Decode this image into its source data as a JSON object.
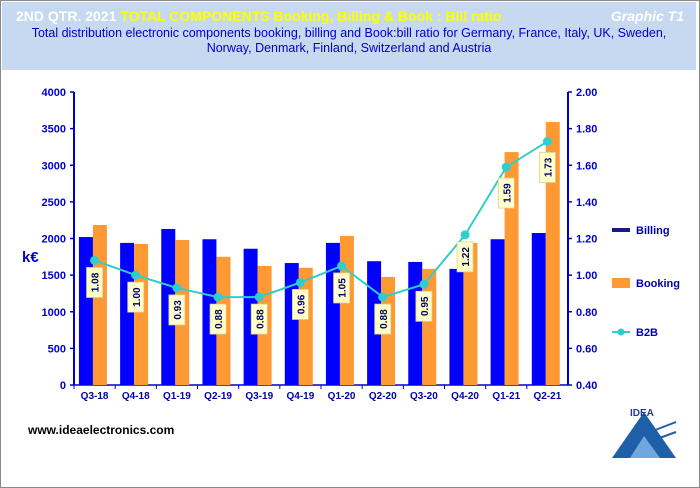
{
  "header": {
    "title_prefix": "2ND QTR. 2021",
    "title_main": "TOTAL COMPONENTS  Booking, Billing  & Book : Bill ratio",
    "graphic_label": "Graphic T1",
    "subtitle_line1": "Total distribution electronic components booking, billing and Book:bill ratio for Germany,  France, Italy,  UK, Sweden,",
    "subtitle_line2": "Norway,  Denmark,  Finland,  Switzerland  and  Austria"
  },
  "footer": {
    "url": "www.ideaelectronics.com",
    "logo_text": "IDEA"
  },
  "colors": {
    "billing": "#0000ff",
    "booking": "#ff9933",
    "b2b": "#33cccc",
    "axis": "#0000cc",
    "header_bg": "#c6d9f1"
  },
  "chart_data": {
    "type": "bar",
    "categories": [
      "Q3-18",
      "Q4-18",
      "Q1-19",
      "Q2-19",
      "Q3-19",
      "Q4-19",
      "Q1-20",
      "Q2-20",
      "Q3-20",
      "Q4-20",
      "Q1-21",
      "Q2-21"
    ],
    "series": [
      {
        "name": "Billing",
        "values": [
          2020,
          1940,
          2130,
          1990,
          1860,
          1665,
          1940,
          1690,
          1680,
          1585,
          1990,
          2075
        ]
      },
      {
        "name": "Booking",
        "values": [
          2185,
          1925,
          1980,
          1750,
          1625,
          1600,
          2035,
          1475,
          1585,
          1940,
          3180,
          3590
        ]
      },
      {
        "name": "B2B",
        "type": "line",
        "axis": "right",
        "values": [
          1.08,
          1.0,
          0.93,
          0.88,
          0.88,
          0.96,
          1.05,
          0.88,
          0.95,
          1.22,
          1.59,
          1.73
        ],
        "labels": [
          "1.08",
          "1.00",
          "0.93",
          "0.88",
          "0.88",
          "0.96",
          "1.05",
          "0.88",
          "0.95",
          "1.22",
          "1.59",
          "1.73"
        ]
      }
    ],
    "ylabel": "k€",
    "ylim": [
      0,
      4000
    ],
    "yticks": [
      "0",
      "500",
      "1000",
      "1500",
      "2000",
      "2500",
      "3000",
      "3500",
      "4000"
    ],
    "y2lim": [
      0.4,
      2.0
    ],
    "y2ticks": [
      "0.40",
      "0.60",
      "0.80",
      "1.00",
      "1.20",
      "1.40",
      "1.60",
      "1.80",
      "2.00"
    ],
    "legend": [
      "Billing",
      "Booking",
      "B2B"
    ],
    "legend_position": "right",
    "grid": false
  }
}
